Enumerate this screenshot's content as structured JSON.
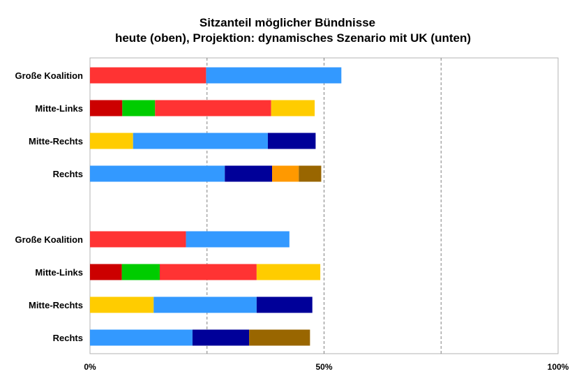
{
  "chart_data": {
    "type": "bar",
    "orientation": "horizontal",
    "stacked": true,
    "title_line1": "Sitzanteil möglicher Bündnisse",
    "title_line2": "heute (oben), Projektion: dynamisches Szenario mit UK (unten)",
    "xlim": [
      0,
      100
    ],
    "x_ticks": [
      "0%",
      "50%",
      "100%"
    ],
    "gridlines": [
      25,
      50,
      75
    ],
    "legend": "none",
    "groups": [
      {
        "rows": [
          {
            "label": "Große Koalition",
            "segments": [
              {
                "value": 24.8,
                "color": "#ff3333"
              },
              {
                "value": 28.9,
                "color": "#3399ff"
              }
            ]
          },
          {
            "label": "Mitte-Links",
            "segments": [
              {
                "value": 6.9,
                "color": "#cc0000"
              },
              {
                "value": 7.0,
                "color": "#00cc00"
              },
              {
                "value": 24.8,
                "color": "#ff3333"
              },
              {
                "value": 9.3,
                "color": "#ffcc00"
              }
            ]
          },
          {
            "label": "Mitte-Rechts",
            "segments": [
              {
                "value": 9.2,
                "color": "#ffcc00"
              },
              {
                "value": 28.8,
                "color": "#3399ff"
              },
              {
                "value": 10.2,
                "color": "#000099"
              }
            ]
          },
          {
            "label": "Rechts",
            "segments": [
              {
                "value": 28.8,
                "color": "#3399ff"
              },
              {
                "value": 10.1,
                "color": "#000099"
              },
              {
                "value": 5.7,
                "color": "#ff9900"
              },
              {
                "value": 4.8,
                "color": "#996600"
              }
            ]
          }
        ]
      },
      {
        "rows": [
          {
            "label": "Große Koalition",
            "segments": [
              {
                "value": 20.5,
                "color": "#ff3333"
              },
              {
                "value": 22.1,
                "color": "#3399ff"
              }
            ]
          },
          {
            "label": "Mitte-Links",
            "segments": [
              {
                "value": 6.8,
                "color": "#cc0000"
              },
              {
                "value": 8.1,
                "color": "#00cc00"
              },
              {
                "value": 20.7,
                "color": "#ff3333"
              },
              {
                "value": 13.6,
                "color": "#ffcc00"
              }
            ]
          },
          {
            "label": "Mitte-Rechts",
            "segments": [
              {
                "value": 13.6,
                "color": "#ffcc00"
              },
              {
                "value": 22.0,
                "color": "#3399ff"
              },
              {
                "value": 11.9,
                "color": "#000099"
              }
            ]
          },
          {
            "label": "Rechts",
            "segments": [
              {
                "value": 21.9,
                "color": "#3399ff"
              },
              {
                "value": 12.1,
                "color": "#000099"
              },
              {
                "value": 13.0,
                "color": "#996600"
              }
            ]
          }
        ]
      }
    ]
  }
}
